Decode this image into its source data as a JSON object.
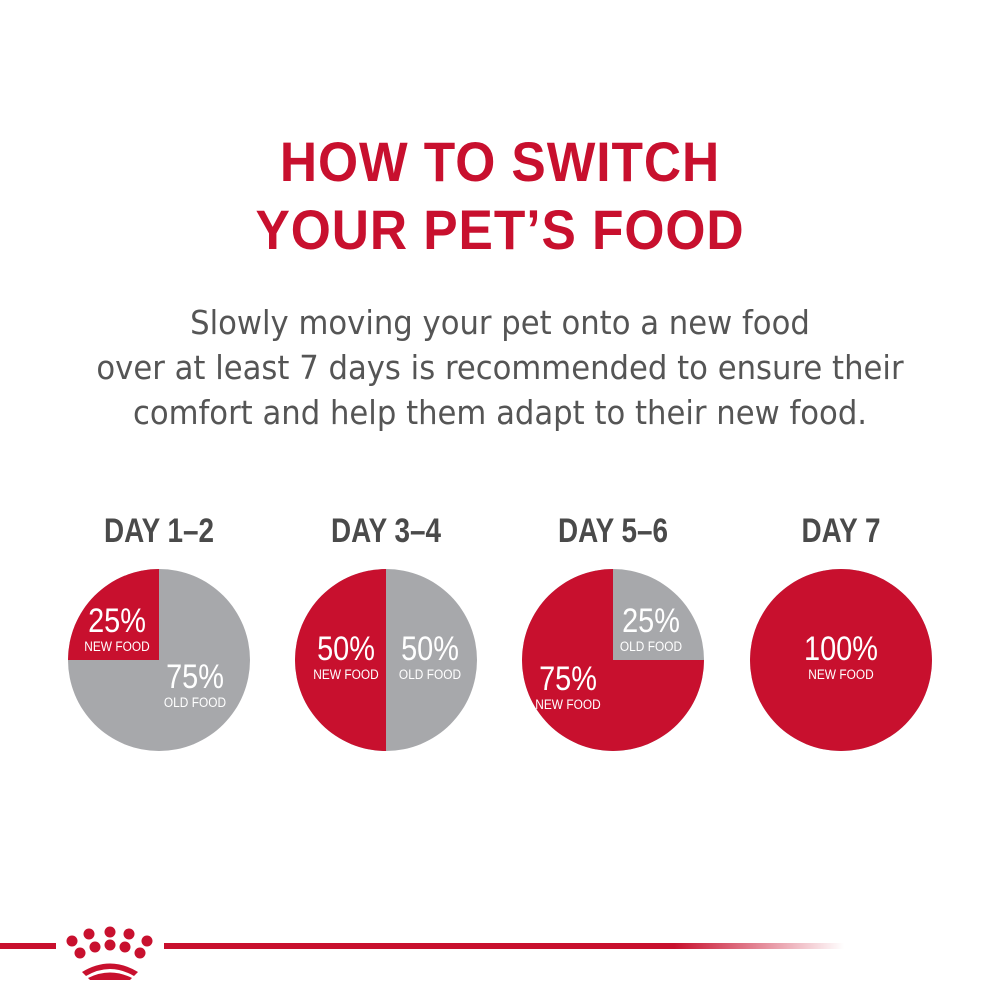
{
  "title": [
    "HOW TO SWITCH",
    "YOUR PET’S FOOD"
  ],
  "subtitle": [
    "Slowly moving your pet onto a new food",
    "over at least 7 days is recommended to ensure their",
    "comfort and help them adapt to their new food."
  ],
  "colors": {
    "new_food": "#c8102e",
    "old_food": "#a7a8ab",
    "heading": "#c8102e",
    "text": "#555555"
  },
  "logo": "royal-canin-crown",
  "chart_data": [
    {
      "type": "pie",
      "title": "DAY 1–2",
      "slices": [
        {
          "label": "NEW FOOD",
          "value": 25,
          "text": "25%"
        },
        {
          "label": "OLD FOOD",
          "value": 75,
          "text": "75%"
        }
      ]
    },
    {
      "type": "pie",
      "title": "DAY 3–4",
      "slices": [
        {
          "label": "NEW FOOD",
          "value": 50,
          "text": "50%"
        },
        {
          "label": "OLD FOOD",
          "value": 50,
          "text": "50%"
        }
      ]
    },
    {
      "type": "pie",
      "title": "DAY 5–6",
      "slices": [
        {
          "label": "NEW FOOD",
          "value": 75,
          "text": "75%"
        },
        {
          "label": "OLD FOOD",
          "value": 25,
          "text": "25%"
        }
      ]
    },
    {
      "type": "pie",
      "title": "DAY 7",
      "slices": [
        {
          "label": "NEW FOOD",
          "value": 100,
          "text": "100%"
        }
      ]
    }
  ]
}
